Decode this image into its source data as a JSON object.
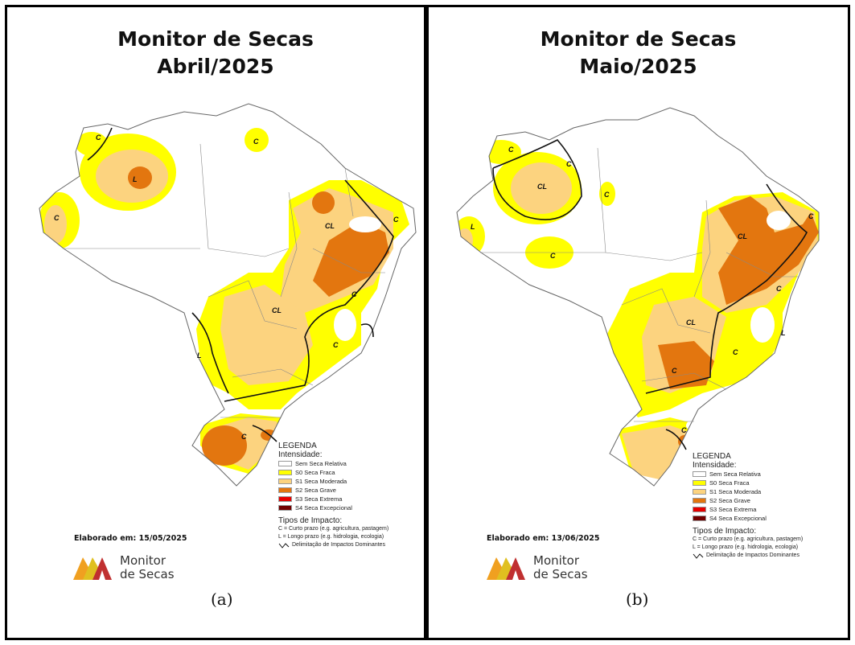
{
  "panels": [
    {
      "title_line1": "Monitor de Secas",
      "title_line2": "Abril/2025",
      "elaborated": "Elaborado em: 15/05/2025",
      "caption": "(a)",
      "impact_labels": [
        "C",
        "L",
        "CL",
        "C",
        "C",
        "C",
        "CL",
        "C",
        "L",
        "C",
        "C"
      ]
    },
    {
      "title_line1": "Monitor de Secas",
      "title_line2": "Maio/2025",
      "elaborated": "Elaborado em: 13/06/2025",
      "caption": "(b)",
      "impact_labels": [
        "C",
        "C",
        "CL",
        "C",
        "L",
        "C",
        "C",
        "CL",
        "C",
        "CL",
        "L",
        "C",
        "C",
        "C"
      ]
    }
  ],
  "legend": {
    "title": "LEGENDA",
    "subtitle": "Intensidade:",
    "items": [
      {
        "label": "Sem Seca Relativa",
        "color": "#ffffff"
      },
      {
        "label": "S0 Seca Fraca",
        "color": "#ffff00"
      },
      {
        "label": "S1 Seca Moderada",
        "color": "#fcd37f"
      },
      {
        "label": "S2 Seca Grave",
        "color": "#e3760f"
      },
      {
        "label": "S3 Seca Extrema",
        "color": "#e60000"
      },
      {
        "label": "S4 Seca Excepcional",
        "color": "#730000"
      }
    ],
    "impact_title": "Tipos de Impacto:",
    "impact_c": "C = Curto prazo (e.g. agricultura, pastagem)",
    "impact_l": "L = Longo prazo (e.g. hidrologia, ecologia)",
    "impact_line": "Delimitação de Impactos Dominantes"
  },
  "logo": {
    "line1": "Monitor",
    "line2": "de Secas"
  }
}
